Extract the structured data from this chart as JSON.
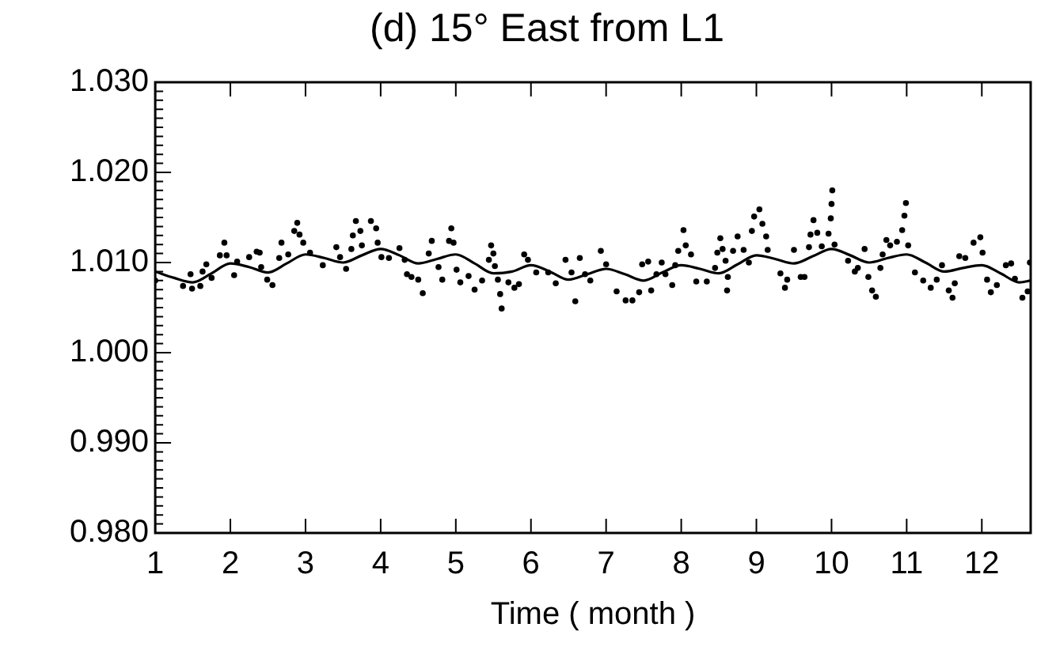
{
  "chart_data": {
    "type": "scatter",
    "title": "(d) 15° East from L1",
    "xlabel": "Time ( month )",
    "xlim": [
      1,
      12.65
    ],
    "xticks": [
      1,
      2,
      3,
      4,
      5,
      6,
      7,
      8,
      9,
      10,
      11,
      12
    ],
    "ylim": [
      0.98,
      1.03
    ],
    "yticks": [
      {
        "value": 0.98,
        "label": "0.980"
      },
      {
        "value": 0.981,
        "label": null
      },
      {
        "value": 0.982,
        "label": null
      },
      {
        "value": 0.983,
        "label": null
      },
      {
        "value": 0.984,
        "label": null
      },
      {
        "value": 0.985,
        "label": null
      },
      {
        "value": 0.986,
        "label": null
      },
      {
        "value": 0.987,
        "label": null
      },
      {
        "value": 0.988,
        "label": null
      },
      {
        "value": 0.989,
        "label": null
      },
      {
        "value": 0.99,
        "label": "0.990"
      },
      {
        "value": 0.991,
        "label": null
      },
      {
        "value": 0.992,
        "label": null
      },
      {
        "value": 0.993,
        "label": null
      },
      {
        "value": 0.994,
        "label": null
      },
      {
        "value": 0.995,
        "label": null
      },
      {
        "value": 0.996,
        "label": null
      },
      {
        "value": 0.997,
        "label": null
      },
      {
        "value": 0.998,
        "label": null
      },
      {
        "value": 0.999,
        "label": null
      },
      {
        "value": 1.0,
        "label": "1.000"
      },
      {
        "value": 1.001,
        "label": null
      },
      {
        "value": 1.002,
        "label": null
      },
      {
        "value": 1.003,
        "label": null
      },
      {
        "value": 1.004,
        "label": null
      },
      {
        "value": 1.005,
        "label": null
      },
      {
        "value": 1.006,
        "label": null
      },
      {
        "value": 1.007,
        "label": null
      },
      {
        "value": 1.008,
        "label": null
      },
      {
        "value": 1.009,
        "label": null
      },
      {
        "value": 1.01,
        "label": "1.010"
      },
      {
        "value": 1.011,
        "label": null
      },
      {
        "value": 1.012,
        "label": null
      },
      {
        "value": 1.013,
        "label": null
      },
      {
        "value": 1.014,
        "label": null
      },
      {
        "value": 1.015,
        "label": null
      },
      {
        "value": 1.016,
        "label": null
      },
      {
        "value": 1.017,
        "label": null
      },
      {
        "value": 1.018,
        "label": null
      },
      {
        "value": 1.019,
        "label": null
      },
      {
        "value": 1.02,
        "label": "1.020"
      },
      {
        "value": 1.021,
        "label": null
      },
      {
        "value": 1.022,
        "label": null
      },
      {
        "value": 1.023,
        "label": null
      },
      {
        "value": 1.024,
        "label": null
      },
      {
        "value": 1.025,
        "label": null
      },
      {
        "value": 1.026,
        "label": null
      },
      {
        "value": 1.027,
        "label": null
      },
      {
        "value": 1.028,
        "label": null
      },
      {
        "value": 1.029,
        "label": null
      },
      {
        "value": 1.03,
        "label": "1.030"
      }
    ],
    "grid": false,
    "legend": false,
    "line_style": "solid",
    "series": [
      {
        "type": "scatter",
        "marker": "circle",
        "color": "#000000",
        "x": [
          1.0,
          1.37,
          1.47,
          1.49,
          1.6,
          1.63,
          1.68,
          1.75,
          1.86,
          1.92,
          1.95,
          2.05,
          2.09,
          2.25,
          2.35,
          2.39,
          2.41,
          2.49,
          2.56,
          2.65,
          2.68,
          2.77,
          2.85,
          2.89,
          2.92,
          2.97,
          3.06,
          3.23,
          3.41,
          3.46,
          3.54,
          3.61,
          3.63,
          3.67,
          3.73,
          3.75,
          3.87,
          3.94,
          3.96,
          4.01,
          4.11,
          4.25,
          4.32,
          4.35,
          4.41,
          4.5,
          4.56,
          4.64,
          4.68,
          4.77,
          4.82,
          4.91,
          4.94,
          4.97,
          5.01,
          5.06,
          5.17,
          5.25,
          5.35,
          5.44,
          5.47,
          5.5,
          5.52,
          5.56,
          5.59,
          5.61,
          5.7,
          5.78,
          5.84,
          5.91,
          5.96,
          6.07,
          6.23,
          6.33,
          6.46,
          6.54,
          6.59,
          6.65,
          6.72,
          6.79,
          6.93,
          7.0,
          7.14,
          7.26,
          7.35,
          7.44,
          7.48,
          7.56,
          7.6,
          7.67,
          7.74,
          7.79,
          7.88,
          7.92,
          7.96,
          8.03,
          8.06,
          8.13,
          8.2,
          8.34,
          8.45,
          8.48,
          8.52,
          8.55,
          8.59,
          8.61,
          8.62,
          8.69,
          8.75,
          8.83,
          8.9,
          8.94,
          8.97,
          9.04,
          9.08,
          9.13,
          9.15,
          9.32,
          9.38,
          9.41,
          9.5,
          9.59,
          9.64,
          9.7,
          9.72,
          9.76,
          9.81,
          9.87,
          9.96,
          9.99,
          10.0,
          10.01,
          10.04,
          10.22,
          10.31,
          10.35,
          10.44,
          10.49,
          10.54,
          10.59,
          10.65,
          10.68,
          10.73,
          10.78,
          10.87,
          10.94,
          10.97,
          10.99,
          11.02,
          11.11,
          11.22,
          11.32,
          11.4,
          11.47,
          11.56,
          11.61,
          11.64,
          11.7,
          11.78,
          11.89,
          11.98,
          12.01,
          12.07,
          12.12,
          12.2,
          12.32,
          12.39,
          12.44,
          12.54,
          12.61,
          12.64
        ],
        "values": [
          1.008,
          1.0074,
          1.0087,
          1.0071,
          1.0074,
          1.009,
          1.0098,
          1.0083,
          1.0108,
          1.0122,
          1.0108,
          1.0086,
          1.0101,
          1.0106,
          1.0112,
          1.0111,
          1.0095,
          1.0081,
          1.0075,
          1.0105,
          1.0122,
          1.0109,
          1.0135,
          1.0144,
          1.0131,
          1.0122,
          1.0111,
          1.0097,
          1.0117,
          1.0106,
          1.0093,
          1.0115,
          1.013,
          1.0146,
          1.0135,
          1.0119,
          1.0146,
          1.0138,
          1.0122,
          1.0106,
          1.0105,
          1.0116,
          1.0103,
          1.0087,
          1.0084,
          1.0081,
          1.0066,
          1.011,
          1.0124,
          1.0095,
          1.0081,
          1.0124,
          1.0138,
          1.0122,
          1.0092,
          1.0078,
          1.0085,
          1.007,
          1.008,
          1.0103,
          1.0119,
          1.011,
          1.0096,
          1.0081,
          1.0065,
          1.0049,
          1.0078,
          1.0072,
          1.0076,
          1.0109,
          1.0103,
          1.0089,
          1.0089,
          1.0077,
          1.0103,
          1.0089,
          1.0057,
          1.0105,
          1.0087,
          1.008,
          1.0113,
          1.0098,
          1.0068,
          1.0058,
          1.0058,
          1.0067,
          1.0098,
          1.0101,
          1.0069,
          1.0087,
          1.01,
          1.0087,
          1.0075,
          1.0097,
          1.0113,
          1.0136,
          1.0119,
          1.0109,
          1.0079,
          1.0079,
          1.0094,
          1.0111,
          1.0127,
          1.0115,
          1.0102,
          1.0069,
          1.0084,
          1.0113,
          1.0129,
          1.0114,
          1.01,
          1.0135,
          1.0151,
          1.0159,
          1.0143,
          1.0129,
          1.0114,
          1.0088,
          1.0072,
          1.0081,
          1.0114,
          1.0084,
          1.0084,
          1.0117,
          1.0131,
          1.0147,
          1.0133,
          1.0118,
          1.0132,
          1.0149,
          1.0165,
          1.018,
          1.012,
          1.0102,
          1.009,
          1.0094,
          1.0115,
          1.0084,
          1.0069,
          1.0062,
          1.0094,
          1.0109,
          1.0125,
          1.0119,
          1.0123,
          1.0136,
          1.0152,
          1.0166,
          1.0119,
          1.0089,
          1.008,
          1.0072,
          1.0081,
          1.0097,
          1.0069,
          1.0061,
          1.0077,
          1.0107,
          1.0105,
          1.0122,
          1.0128,
          1.0111,
          1.0081,
          1.0067,
          1.0075,
          1.0097,
          1.0099,
          1.0082,
          1.0061,
          1.0068,
          1.01
        ]
      },
      {
        "type": "line",
        "marker": "none",
        "color": "#000000",
        "x": [
          1.0,
          1.25,
          1.5,
          1.75,
          2.0,
          2.25,
          2.5,
          2.75,
          3.0,
          3.25,
          3.5,
          3.75,
          4.0,
          4.25,
          4.5,
          4.75,
          5.0,
          5.25,
          5.5,
          5.75,
          6.0,
          6.25,
          6.5,
          6.75,
          7.0,
          7.25,
          7.5,
          7.75,
          8.0,
          8.25,
          8.5,
          8.75,
          9.0,
          9.25,
          9.5,
          9.75,
          10.0,
          10.25,
          10.5,
          10.75,
          11.0,
          11.25,
          11.5,
          11.75,
          12.0,
          12.25,
          12.5,
          12.65
        ],
        "values": [
          1.009,
          1.0083,
          1.0078,
          1.0088,
          1.0099,
          1.0095,
          1.0089,
          1.0099,
          1.0109,
          1.0105,
          1.01,
          1.0108,
          1.0115,
          1.0108,
          1.0099,
          1.0104,
          1.0109,
          1.0099,
          1.0088,
          1.009,
          1.0097,
          1.009,
          1.0081,
          1.0087,
          1.0093,
          1.0087,
          1.008,
          1.0089,
          1.0097,
          1.0093,
          1.0088,
          1.0098,
          1.0108,
          1.0104,
          1.0099,
          1.0107,
          1.0115,
          1.0108,
          1.01,
          1.0105,
          1.0109,
          1.01,
          1.009,
          1.0094,
          1.0097,
          1.0088,
          1.0078,
          1.008
        ]
      }
    ]
  }
}
